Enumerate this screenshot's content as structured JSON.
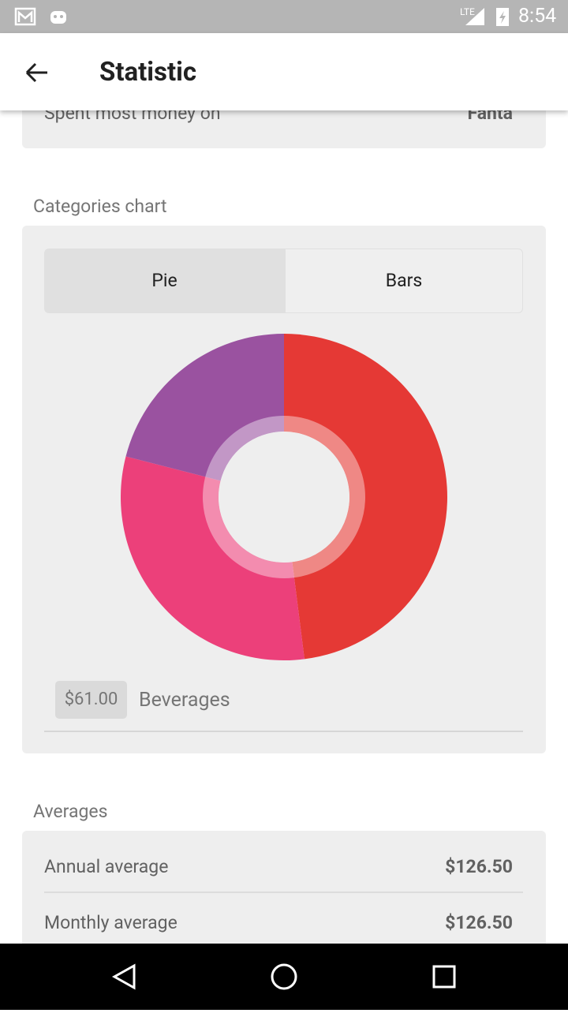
{
  "status_bar": {
    "network": "LTE",
    "time": "8:54"
  },
  "app_bar": {
    "title": "Statistic"
  },
  "summary": {
    "label": "Spent most money on",
    "value": "Fanta"
  },
  "categories_section": {
    "heading": "Categories chart",
    "tabs": [
      "Pie",
      "Bars"
    ],
    "selected_amount": "$61.00",
    "selected_category": "Beverages"
  },
  "chart_data": {
    "type": "pie",
    "donut": true,
    "values": [
      48,
      31,
      21
    ],
    "colors": [
      "#e53935",
      "#ec407a",
      "#9a52a0"
    ]
  },
  "averages": {
    "heading": "Averages",
    "rows": [
      [
        "Annual average",
        "$126.50"
      ],
      [
        "Monthly average",
        "$126.50"
      ]
    ]
  }
}
